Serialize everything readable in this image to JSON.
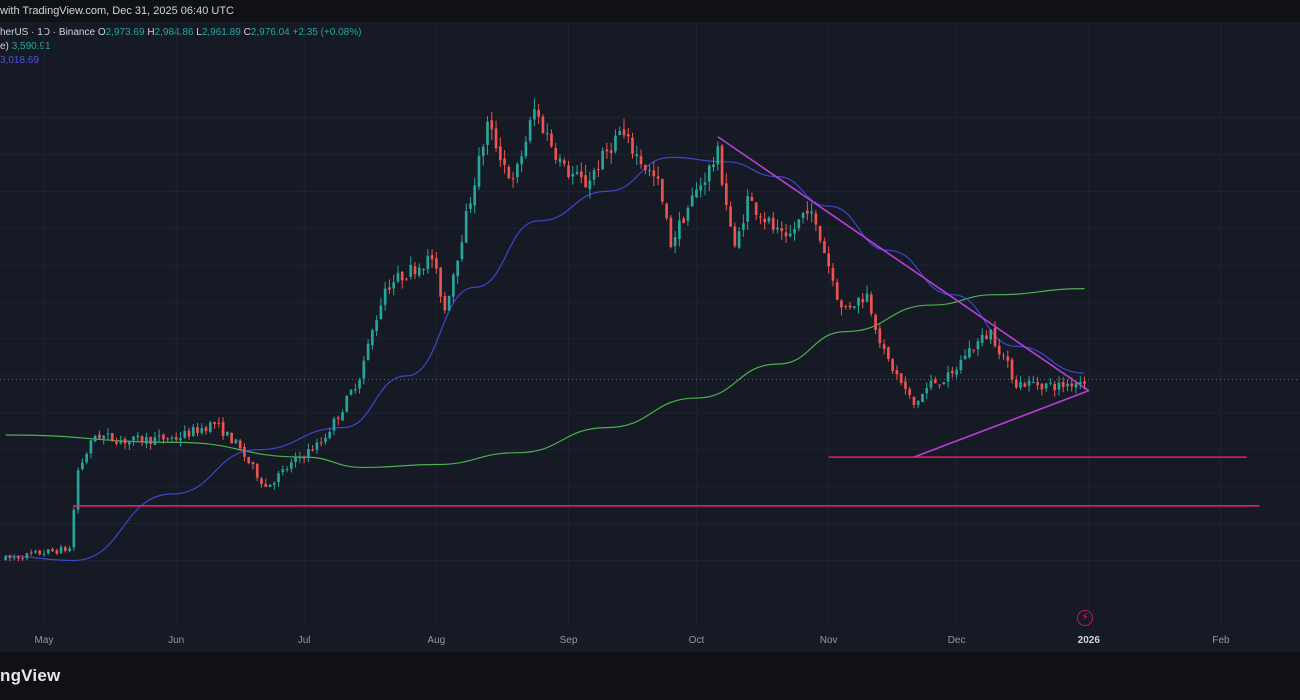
{
  "header": {
    "published_text": "with TradingView.com, Dec 31, 2025 06:40 UTC"
  },
  "legend": {
    "symbol": "herUS · 1D · Binance",
    "ohlc": {
      "o_label": "O",
      "o": "2,973.69",
      "h_label": "H",
      "h": "2,984.86",
      "l_label": "L",
      "l": "2,961.89",
      "c_label": "C",
      "c": "2,976.04",
      "change": "+2.35 (+0.08%)"
    },
    "ma_long": {
      "label": "e)",
      "value": "3,590.91"
    },
    "ma_short": {
      "label": "",
      "value": "3,018.69"
    }
  },
  "footer": {
    "brand": "ngView"
  },
  "icons": {
    "alert": "lightning-bolt-icon"
  },
  "colors": {
    "background": "#161a25",
    "up": "#26a69a",
    "down": "#ef5350",
    "ma_short": "#3e45c9",
    "ma_long": "#4caf50",
    "trendline": "#b83fd6",
    "support": "#e91e63"
  },
  "chart_data": {
    "type": "candlestick",
    "title": "",
    "interval": "1D",
    "x_axis_labels": [
      "May",
      "Jun",
      "Jul",
      "Aug",
      "Sep",
      "Oct",
      "Nov",
      "Dec",
      "2026",
      "Feb"
    ],
    "y_range_approx": [
      1550,
      4950
    ],
    "series": [
      {
        "name": "",
        "kind": "close_path_approx",
        "points": [
          [
            "Apr 22",
            1760
          ],
          [
            "Apr 30",
            1800
          ],
          [
            "May 7",
            1830
          ],
          [
            "May 9",
            2360
          ],
          [
            "May 13",
            2600
          ],
          [
            "May 20",
            2560
          ],
          [
            "Jun 1",
            2580
          ],
          [
            "Jun 10",
            2680
          ],
          [
            "Jun 15",
            2540
          ],
          [
            "Jun 22",
            2250
          ],
          [
            "Jun 30",
            2450
          ],
          [
            "Jul 5",
            2550
          ],
          [
            "Jul 10",
            2780
          ],
          [
            "Jul 14",
            3000
          ],
          [
            "Jul 20",
            3600
          ],
          [
            "Jul 25",
            3700
          ],
          [
            "Jul 31",
            3800
          ],
          [
            "Aug 3",
            3450
          ],
          [
            "Aug 9",
            4200
          ],
          [
            "Aug 13",
            4700
          ],
          [
            "Aug 19",
            4300
          ],
          [
            "Aug 24",
            4800
          ],
          [
            "Aug 31",
            4400
          ],
          [
            "Sep 5",
            4300
          ],
          [
            "Sep 13",
            4650
          ],
          [
            "Sep 22",
            4300
          ],
          [
            "Sep 25",
            3900
          ],
          [
            "Sep 30",
            4200
          ],
          [
            "Oct 6",
            4500
          ],
          [
            "Oct 10",
            3850
          ],
          [
            "Oct 13",
            4200
          ],
          [
            "Oct 22",
            3900
          ],
          [
            "Oct 27",
            4150
          ],
          [
            "Oct 31",
            3850
          ],
          [
            "Nov 4",
            3450
          ],
          [
            "Nov 10",
            3550
          ],
          [
            "Nov 14",
            3150
          ],
          [
            "Nov 21",
            2800
          ],
          [
            "Nov 25",
            2950
          ],
          [
            "Nov 30",
            3000
          ],
          [
            "Dec 3",
            3150
          ],
          [
            "Dec 9",
            3300
          ],
          [
            "Dec 15",
            2950
          ],
          [
            "Dec 19",
            2950
          ],
          [
            "Dec 25",
            2930
          ],
          [
            "Dec 31",
            2976
          ]
        ]
      },
      {
        "name": "",
        "color": "#3e45c9",
        "points": [
          [
            "Apr 22",
            1780
          ],
          [
            "May 8",
            1750
          ],
          [
            "May 31",
            2200
          ],
          [
            "Jun 20",
            2500
          ],
          [
            "Jul 10",
            2650
          ],
          [
            "Jul 25",
            3000
          ],
          [
            "Aug 10",
            3600
          ],
          [
            "Aug 25",
            4050
          ],
          [
            "Sep 10",
            4250
          ],
          [
            "Sep 25",
            4480
          ],
          [
            "Oct 8",
            4450
          ],
          [
            "Oct 20",
            4350
          ],
          [
            "Nov 1",
            4150
          ],
          [
            "Nov 15",
            3850
          ],
          [
            "Nov 30",
            3550
          ],
          [
            "Dec 15",
            3200
          ],
          [
            "Dec 31",
            3019
          ]
        ]
      },
      {
        "name": "",
        "color": "#4caf50",
        "points": [
          [
            "Apr 22",
            2600
          ],
          [
            "Jun 1",
            2550
          ],
          [
            "Jul 1",
            2450
          ],
          [
            "Jul 15",
            2380
          ],
          [
            "Aug 1",
            2400
          ],
          [
            "Aug 20",
            2480
          ],
          [
            "Sep 10",
            2650
          ],
          [
            "Oct 1",
            2850
          ],
          [
            "Oct 20",
            3080
          ],
          [
            "Nov 5",
            3300
          ],
          [
            "Nov 25",
            3480
          ],
          [
            "Dec 10",
            3550
          ],
          [
            "Dec 31",
            3591
          ]
        ]
      }
    ],
    "drawn_lines": [
      {
        "kind": "descending_trendline",
        "from": [
          "Oct 6",
          4620
        ],
        "to": [
          "Jan 1",
          2900
        ]
      },
      {
        "kind": "ascending_trendline",
        "from": [
          "Nov 21",
          2450
        ],
        "to": [
          "Jan 1",
          2900
        ]
      },
      {
        "kind": "horizontal_support",
        "from": [
          "Nov 1",
          2450
        ],
        "to": [
          "Feb 7",
          2450
        ]
      },
      {
        "kind": "horizontal_support",
        "from": [
          "May 8",
          2120
        ],
        "to": [
          "Feb 10",
          2120
        ]
      }
    ]
  }
}
